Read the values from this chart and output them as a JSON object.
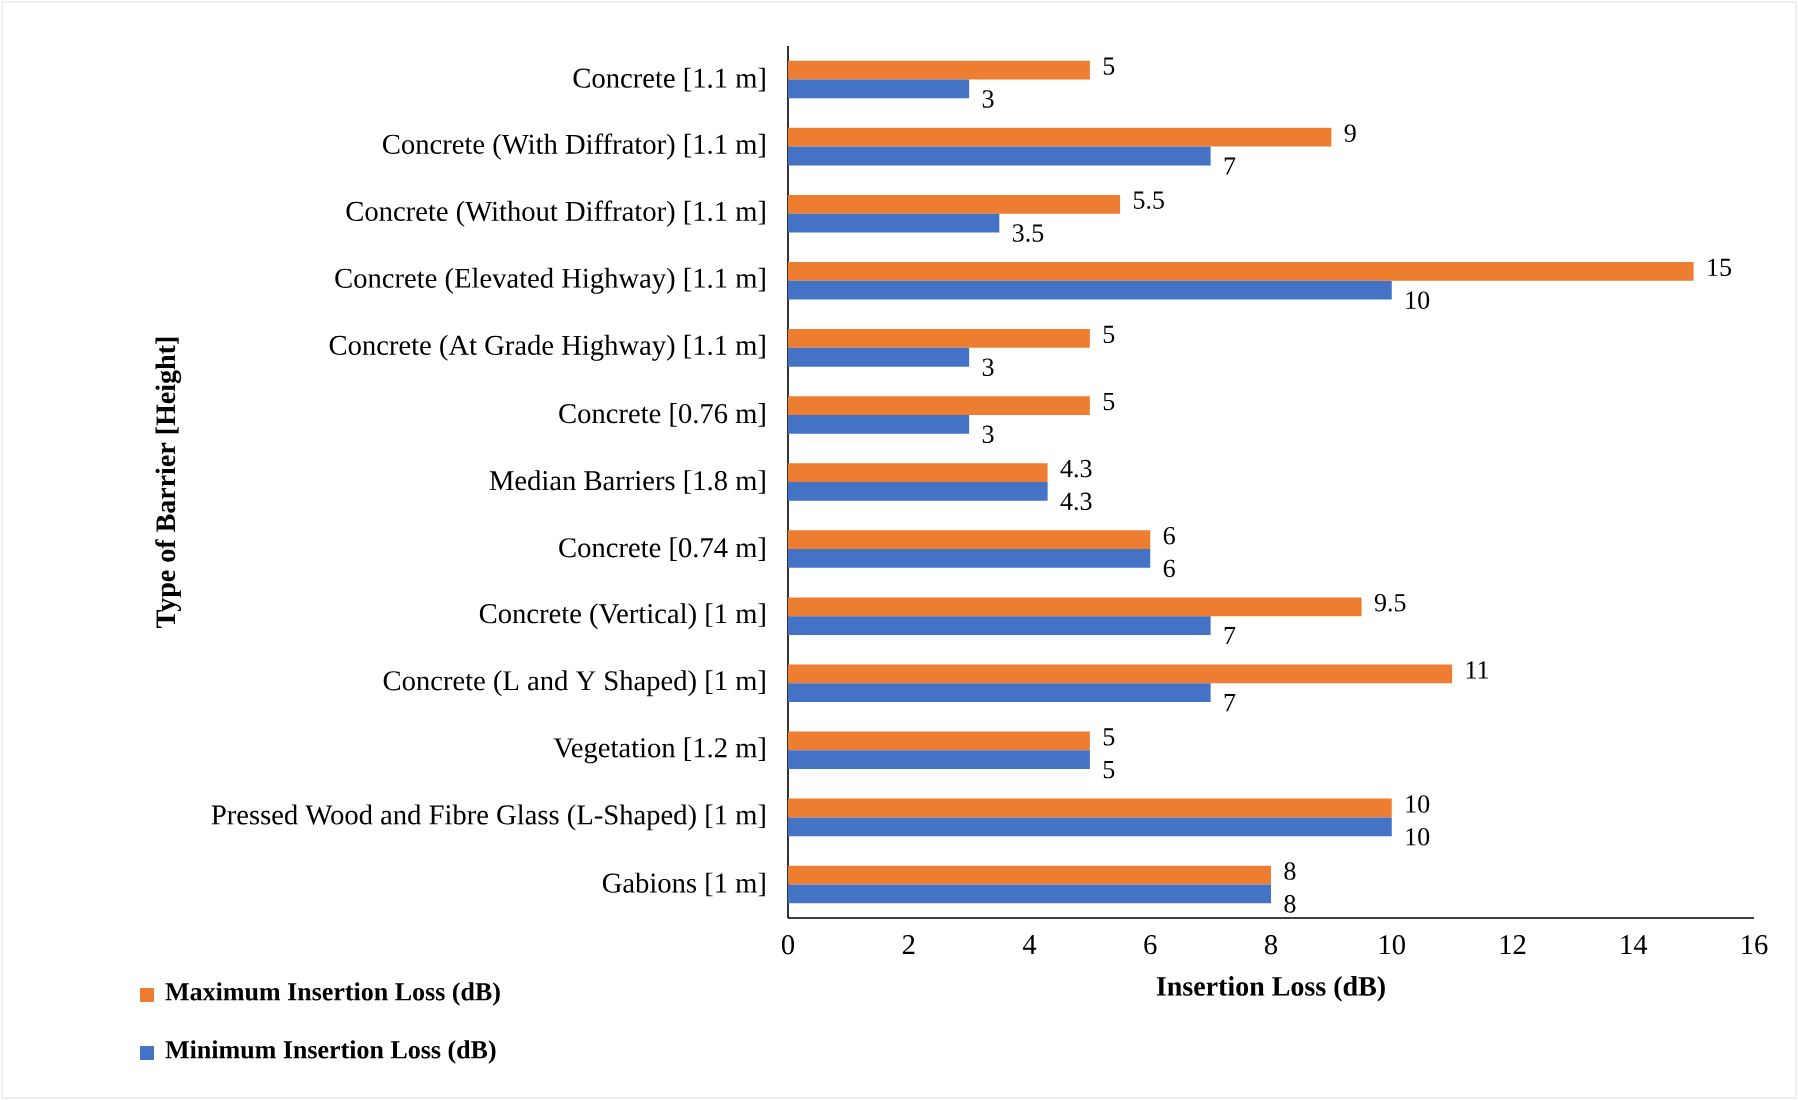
{
  "chart_data": {
    "type": "bar",
    "orientation": "horizontal",
    "xlabel": "Insertion Loss (dB)",
    "ylabel": "Type of  Barrier [Height]",
    "categories": [
      "Concrete [1.1 m]",
      "Concrete (With Diffrator) [1.1 m]",
      "Concrete (Without Diffrator) [1.1 m]",
      "Concrete (Elevated Highway) [1.1 m]",
      "Concrete (At Grade Highway) [1.1 m]",
      "Concrete [0.76 m]",
      "Median Barriers [1.8 m]",
      "Concrete [0.74 m]",
      "Concrete (Vertical) [1 m]",
      "Concrete (L and Y Shaped) [1 m]",
      "Vegetation [1.2 m]",
      "Pressed Wood and Fibre Glass (L-Shaped) [1 m]",
      "Gabions [1 m]"
    ],
    "series": [
      {
        "name": "Maximum Insertion Loss (dB)",
        "color": "#ed7d31",
        "values": [
          5,
          9,
          5.5,
          15,
          5,
          5,
          4.3,
          6,
          9.5,
          11,
          5,
          10,
          8
        ]
      },
      {
        "name": "Minimum Insertion Loss (dB)",
        "color": "#4472c4",
        "values": [
          3,
          7,
          3.5,
          10,
          3,
          3,
          4.3,
          6,
          7,
          7,
          5,
          10,
          8
        ]
      }
    ],
    "xlim": [
      0,
      16
    ],
    "xticks": [
      0,
      2,
      4,
      6,
      8,
      10,
      12,
      14,
      16
    ],
    "data_labels": true,
    "legend": "bottom left"
  }
}
